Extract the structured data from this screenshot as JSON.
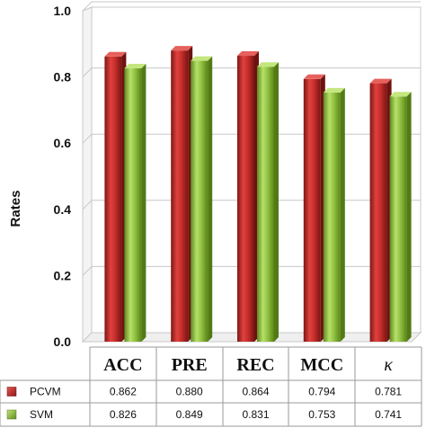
{
  "chart_data": {
    "type": "bar",
    "ylabel": "Rates",
    "ylim": [
      0,
      1.0
    ],
    "yticks": [
      "0.0",
      "0.2",
      "0.4",
      "0.6",
      "0.8",
      "1.0"
    ],
    "ytick_values": [
      0,
      0.2,
      0.4,
      0.6,
      0.8,
      1.0
    ],
    "grid": true,
    "style": "3d-cylinder",
    "categories": [
      "ACC",
      "PRE",
      "REC",
      "MCC",
      "κ"
    ],
    "series": [
      {
        "name": "PCVM",
        "color": "#c0302e",
        "values": [
          0.862,
          0.88,
          0.864,
          0.794,
          0.781
        ],
        "labels": [
          "0.862",
          "0.880",
          "0.864",
          "0.794",
          "0.781"
        ]
      },
      {
        "name": "SVM",
        "color": "#8cc03c",
        "values": [
          0.826,
          0.849,
          0.831,
          0.753,
          0.741
        ],
        "labels": [
          "0.826",
          "0.849",
          "0.831",
          "0.753",
          "0.741"
        ]
      }
    ],
    "legend_placement": "data-table-below"
  }
}
